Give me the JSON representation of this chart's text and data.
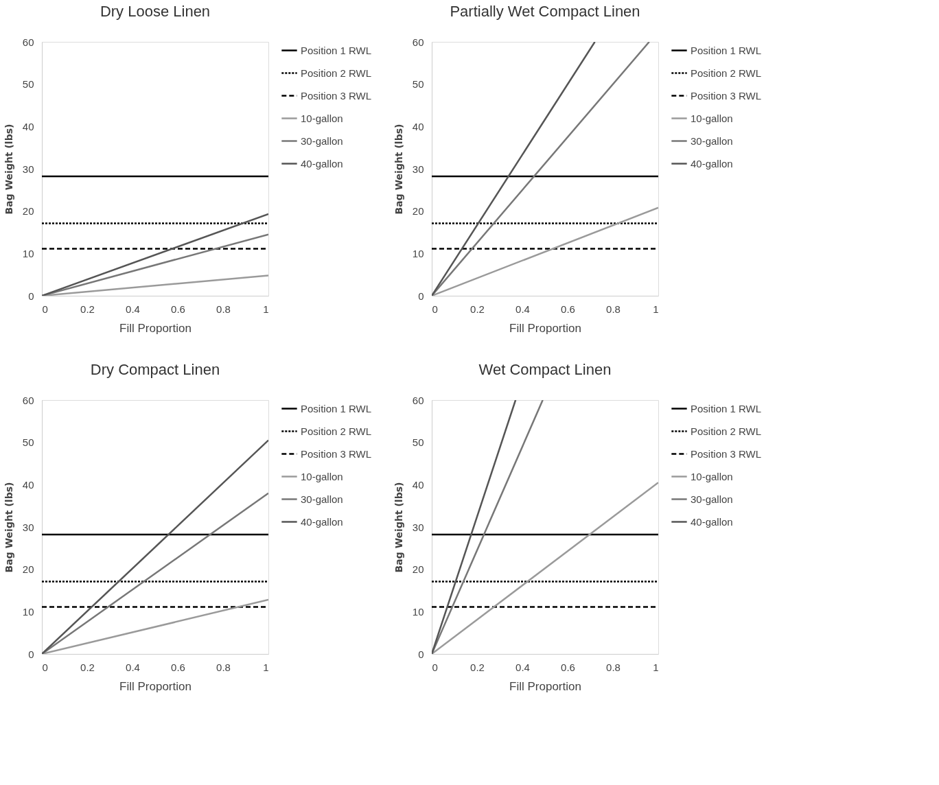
{
  "chart_data": [
    {
      "type": "line",
      "title": "Dry Loose Linen",
      "xlabel": "Fill Proportion",
      "ylabel": "Bag Weight (lbs)",
      "xlim": [
        0,
        1
      ],
      "ylim": [
        0,
        60
      ],
      "xticks": [
        0,
        0.2,
        0.4,
        0.6,
        0.8,
        1
      ],
      "yticks": [
        0,
        10,
        20,
        30,
        40,
        50,
        60
      ],
      "grid": false,
      "legend": "right",
      "marker": "none",
      "series": [
        {
          "name": "Position 1 RWL",
          "color": "#000000",
          "line_style": "solid",
          "x": [
            0,
            1
          ],
          "values": [
            28.2,
            28.2
          ]
        },
        {
          "name": "Position 2 RWL",
          "color": "#000000",
          "line_style": "dotted",
          "x": [
            0,
            1
          ],
          "values": [
            17.1,
            17.1
          ]
        },
        {
          "name": "Position 3 RWL",
          "color": "#000000",
          "line_style": "dashed",
          "x": [
            0,
            1
          ],
          "values": [
            11.1,
            11.1
          ]
        },
        {
          "name": "10-gallon",
          "color": "#9a9a9a",
          "line_style": "solid",
          "x": [
            0,
            1
          ],
          "values": [
            0,
            4.8
          ]
        },
        {
          "name": "30-gallon",
          "color": "#777777",
          "line_style": "solid",
          "x": [
            0,
            1
          ],
          "values": [
            0,
            14.5
          ]
        },
        {
          "name": "40-gallon",
          "color": "#555555",
          "line_style": "solid",
          "x": [
            0,
            1
          ],
          "values": [
            0,
            19.3
          ]
        }
      ]
    },
    {
      "type": "line",
      "title": "Partially Wet Compact Linen",
      "xlabel": "Fill Proportion",
      "ylabel": "Bag Weight (lbs)",
      "xlim": [
        0,
        1
      ],
      "ylim": [
        0,
        60
      ],
      "xticks": [
        0,
        0.2,
        0.4,
        0.6,
        0.8,
        1
      ],
      "yticks": [
        0,
        10,
        20,
        30,
        40,
        50,
        60
      ],
      "grid": false,
      "legend": "right",
      "marker": "none",
      "series": [
        {
          "name": "Position 1 RWL",
          "color": "#000000",
          "line_style": "solid",
          "x": [
            0,
            1
          ],
          "values": [
            28.2,
            28.2
          ]
        },
        {
          "name": "Position 2 RWL",
          "color": "#000000",
          "line_style": "dotted",
          "x": [
            0,
            1
          ],
          "values": [
            17.1,
            17.1
          ]
        },
        {
          "name": "Position 3 RWL",
          "color": "#000000",
          "line_style": "dashed",
          "x": [
            0,
            1
          ],
          "values": [
            11.1,
            11.1
          ]
        },
        {
          "name": "10-gallon",
          "color": "#9a9a9a",
          "line_style": "solid",
          "x": [
            0,
            1
          ],
          "values": [
            0,
            20.8
          ]
        },
        {
          "name": "30-gallon",
          "color": "#777777",
          "line_style": "solid",
          "x": [
            0,
            0.96
          ],
          "values": [
            0,
            60
          ]
        },
        {
          "name": "40-gallon",
          "color": "#555555",
          "line_style": "solid",
          "x": [
            0,
            0.72
          ],
          "values": [
            0,
            60
          ]
        }
      ]
    },
    {
      "type": "line",
      "title": "Dry Compact Linen",
      "xlabel": "Fill Proportion",
      "ylabel": "Bag Weight (lbs)",
      "xlim": [
        0,
        1
      ],
      "ylim": [
        0,
        60
      ],
      "xticks": [
        0,
        0.2,
        0.4,
        0.6,
        0.8,
        1
      ],
      "yticks": [
        0,
        10,
        20,
        30,
        40,
        50,
        60
      ],
      "grid": false,
      "legend": "right",
      "marker": "none",
      "series": [
        {
          "name": "Position 1 RWL",
          "color": "#000000",
          "line_style": "solid",
          "x": [
            0,
            1
          ],
          "values": [
            28.2,
            28.2
          ]
        },
        {
          "name": "Position 2 RWL",
          "color": "#000000",
          "line_style": "dotted",
          "x": [
            0,
            1
          ],
          "values": [
            17.1,
            17.1
          ]
        },
        {
          "name": "Position 3 RWL",
          "color": "#000000",
          "line_style": "dashed",
          "x": [
            0,
            1
          ],
          "values": [
            11.1,
            11.1
          ]
        },
        {
          "name": "10-gallon",
          "color": "#9a9a9a",
          "line_style": "solid",
          "x": [
            0,
            1
          ],
          "values": [
            0,
            12.8
          ]
        },
        {
          "name": "30-gallon",
          "color": "#777777",
          "line_style": "solid",
          "x": [
            0,
            1
          ],
          "values": [
            0,
            38
          ]
        },
        {
          "name": "40-gallon",
          "color": "#555555",
          "line_style": "solid",
          "x": [
            0,
            1
          ],
          "values": [
            0,
            50.5
          ]
        }
      ]
    },
    {
      "type": "line",
      "title": "Wet Compact Linen",
      "xlabel": "Fill Proportion",
      "ylabel": "Bag Weight (lbs)",
      "xlim": [
        0,
        1
      ],
      "ylim": [
        0,
        60
      ],
      "xticks": [
        0,
        0.2,
        0.4,
        0.6,
        0.8,
        1
      ],
      "yticks": [
        0,
        10,
        20,
        30,
        40,
        50,
        60
      ],
      "grid": false,
      "legend": "right",
      "marker": "none",
      "series": [
        {
          "name": "Position 1 RWL",
          "color": "#000000",
          "line_style": "solid",
          "x": [
            0,
            1
          ],
          "values": [
            28.2,
            28.2
          ]
        },
        {
          "name": "Position 2 RWL",
          "color": "#000000",
          "line_style": "dotted",
          "x": [
            0,
            1
          ],
          "values": [
            17.1,
            17.1
          ]
        },
        {
          "name": "Position 3 RWL",
          "color": "#000000",
          "line_style": "dashed",
          "x": [
            0,
            1
          ],
          "values": [
            11.1,
            11.1
          ]
        },
        {
          "name": "10-gallon",
          "color": "#9a9a9a",
          "line_style": "solid",
          "x": [
            0,
            1
          ],
          "values": [
            0,
            40.5
          ]
        },
        {
          "name": "30-gallon",
          "color": "#777777",
          "line_style": "solid",
          "x": [
            0,
            0.49
          ],
          "values": [
            0,
            60
          ]
        },
        {
          "name": "40-gallon",
          "color": "#555555",
          "line_style": "solid",
          "x": [
            0,
            0.37
          ],
          "values": [
            0,
            60
          ]
        }
      ]
    }
  ]
}
